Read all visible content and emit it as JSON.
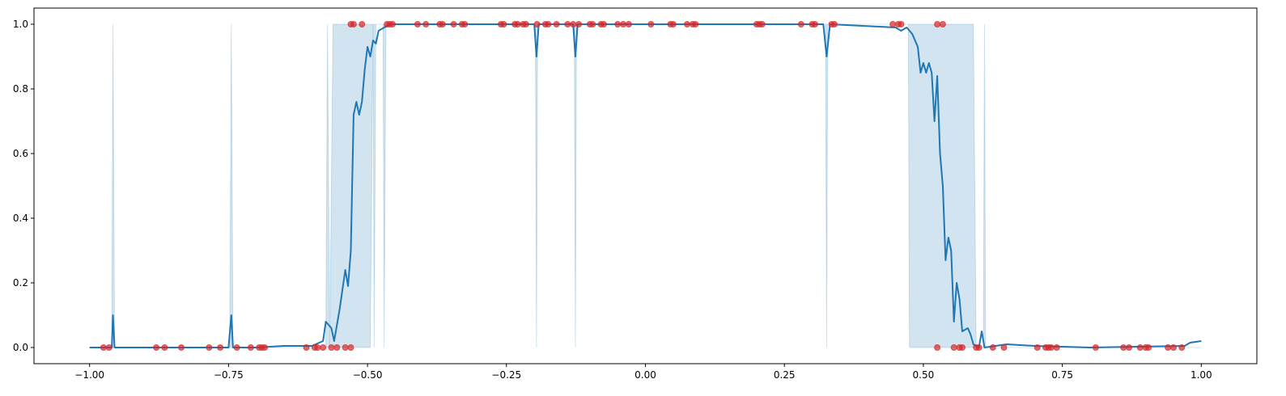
{
  "chart_data": {
    "type": "line",
    "xlim": [
      -1.1,
      1.1
    ],
    "ylim": [
      -0.05,
      1.05
    ],
    "xticks": [
      {
        "value": -1,
        "label": "−1.00"
      },
      {
        "value": -0.75,
        "label": "−0.75"
      },
      {
        "value": -0.5,
        "label": "−0.50"
      },
      {
        "value": -0.25,
        "label": "−0.25"
      },
      {
        "value": 0,
        "label": "0.00"
      },
      {
        "value": 0.25,
        "label": "0.25"
      },
      {
        "value": 0.5,
        "label": "0.50"
      },
      {
        "value": 0.75,
        "label": "0.75"
      },
      {
        "value": 1,
        "label": "1.00"
      }
    ],
    "yticks": [
      {
        "value": 0,
        "label": "0.0"
      },
      {
        "value": 0.2,
        "label": "0.2"
      },
      {
        "value": 0.4,
        "label": "0.4"
      },
      {
        "value": 0.6,
        "label": "0.6"
      },
      {
        "value": 0.8,
        "label": "0.8"
      },
      {
        "value": 1,
        "label": "1.0"
      }
    ],
    "band": {
      "color": "#1f77b4",
      "alpha": 0.2,
      "x": [
        -1,
        -0.96,
        -0.958,
        -0.955,
        -0.748,
        -0.745,
        -0.742,
        -0.575,
        -0.572,
        -0.568,
        -0.562,
        -0.495,
        -0.49,
        -0.488,
        -0.485,
        -0.472,
        -0.47,
        -0.467,
        -0.198,
        -0.196,
        -0.194,
        -0.128,
        -0.126,
        -0.124,
        0.324,
        0.326,
        0.328,
        0.473,
        0.475,
        0.59,
        0.595,
        0.608,
        0.61,
        0.612,
        1
      ],
      "lower": [
        0,
        0,
        0,
        0,
        0,
        0,
        0,
        0,
        0,
        0,
        0,
        0,
        1,
        0,
        1,
        1,
        0,
        1,
        1,
        0,
        1,
        1,
        0,
        1,
        1,
        0,
        1,
        1,
        0,
        0,
        0,
        0,
        0,
        0,
        0
      ],
      "upper": [
        0,
        0,
        1,
        0,
        0,
        1,
        0,
        0,
        1,
        0,
        1,
        1,
        1,
        1,
        1,
        1,
        1,
        1,
        1,
        1,
        1,
        1,
        1,
        1,
        1,
        1,
        1,
        1,
        1,
        1,
        0,
        0,
        1,
        0,
        0
      ]
    },
    "series": [
      {
        "color": "#1f77b4",
        "x": [
          -1,
          -0.96,
          -0.958,
          -0.955,
          -0.75,
          -0.745,
          -0.742,
          -0.7,
          -0.65,
          -0.6,
          -0.58,
          -0.575,
          -0.565,
          -0.56,
          -0.55,
          -0.54,
          -0.535,
          -0.53,
          -0.525,
          -0.52,
          -0.515,
          -0.51,
          -0.505,
          -0.5,
          -0.495,
          -0.49,
          -0.485,
          -0.48,
          -0.47,
          -0.46,
          -0.2,
          -0.196,
          -0.192,
          -0.13,
          -0.126,
          -0.122,
          0.32,
          0.326,
          0.332,
          0.45,
          0.46,
          0.47,
          0.48,
          0.49,
          0.495,
          0.5,
          0.505,
          0.51,
          0.515,
          0.52,
          0.525,
          0.53,
          0.535,
          0.54,
          0.545,
          0.55,
          0.555,
          0.56,
          0.565,
          0.57,
          0.58,
          0.585,
          0.59,
          0.6,
          0.605,
          0.61,
          0.65,
          0.7,
          0.8,
          0.97,
          0.98,
          1
        ],
        "values": [
          0,
          0,
          0.1,
          0,
          0,
          0.1,
          0,
          0,
          0.005,
          0.005,
          0.02,
          0.08,
          0.06,
          0.02,
          0.12,
          0.24,
          0.19,
          0.3,
          0.72,
          0.76,
          0.72,
          0.76,
          0.86,
          0.93,
          0.9,
          0.95,
          0.94,
          0.98,
          0.99,
          1,
          1,
          0.9,
          1,
          1,
          0.9,
          1,
          1,
          0.9,
          1,
          0.99,
          0.98,
          0.99,
          0.97,
          0.93,
          0.85,
          0.88,
          0.85,
          0.88,
          0.85,
          0.7,
          0.84,
          0.6,
          0.5,
          0.27,
          0.34,
          0.3,
          0.08,
          0.2,
          0.15,
          0.05,
          0.06,
          0.04,
          0.01,
          0,
          0.05,
          0,
          0.01,
          0.005,
          0,
          0.005,
          0.015,
          0.02
        ]
      }
    ],
    "points": {
      "color": "#d62728",
      "alpha": 0.7,
      "x": [
        -0.53,
        -0.525,
        -0.51,
        -0.465,
        -0.46,
        -0.455,
        -0.41,
        -0.395,
        -0.37,
        -0.365,
        -0.345,
        -0.33,
        -0.325,
        -0.26,
        -0.255,
        -0.235,
        -0.23,
        -0.22,
        -0.215,
        -0.195,
        -0.18,
        -0.175,
        -0.16,
        -0.14,
        -0.13,
        -0.12,
        -0.1,
        -0.095,
        -0.08,
        -0.075,
        -0.05,
        -0.04,
        -0.03,
        0.01,
        0.045,
        0.05,
        0.075,
        0.085,
        0.09,
        0.2,
        0.205,
        0.21,
        0.28,
        0.3,
        0.305,
        0.335,
        0.34,
        0.445,
        0.455,
        0.46,
        0.525,
        0.535,
        -0.975,
        -0.965,
        -0.88,
        -0.865,
        -0.835,
        -0.785,
        -0.765,
        -0.735,
        -0.71,
        -0.695,
        -0.69,
        -0.685,
        -0.61,
        -0.595,
        -0.59,
        -0.58,
        -0.565,
        -0.555,
        -0.54,
        -0.53,
        0.525,
        0.555,
        0.565,
        0.57,
        0.595,
        0.6,
        0.625,
        0.645,
        0.705,
        0.72,
        0.725,
        0.73,
        0.74,
        0.81,
        0.86,
        0.87,
        0.89,
        0.9,
        0.905,
        0.94,
        0.95,
        0.965
      ],
      "y": [
        1,
        1,
        1,
        1,
        1,
        1,
        1,
        1,
        1,
        1,
        1,
        1,
        1,
        1,
        1,
        1,
        1,
        1,
        1,
        1,
        1,
        1,
        1,
        1,
        1,
        1,
        1,
        1,
        1,
        1,
        1,
        1,
        1,
        1,
        1,
        1,
        1,
        1,
        1,
        1,
        1,
        1,
        1,
        1,
        1,
        1,
        1,
        1,
        1,
        1,
        1,
        1,
        0,
        0,
        0,
        0,
        0,
        0,
        0,
        0,
        0,
        0,
        0,
        0,
        0,
        0,
        0,
        0,
        0,
        0,
        0,
        0,
        0,
        0,
        0,
        0,
        0,
        0,
        0,
        0,
        0,
        0,
        0,
        0,
        0,
        0,
        0,
        0,
        0,
        0,
        0,
        0,
        0,
        0
      ]
    }
  }
}
